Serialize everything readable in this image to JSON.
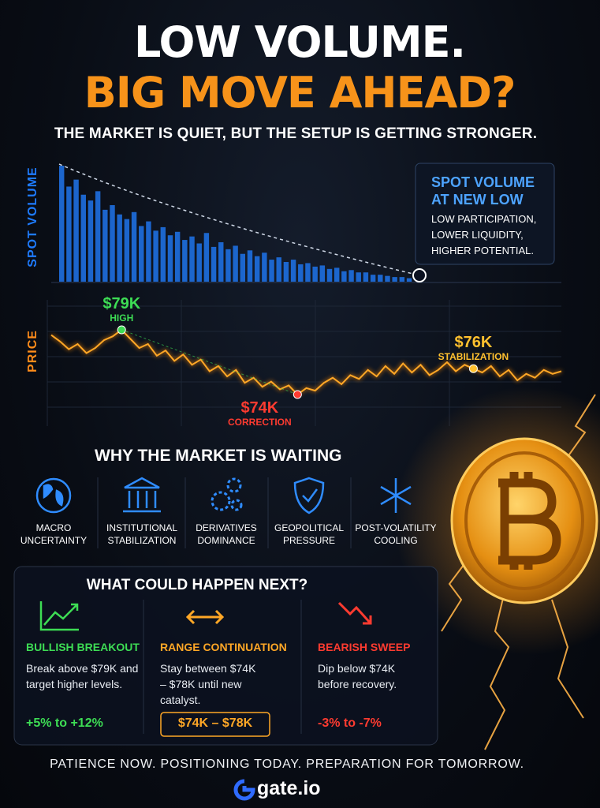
{
  "header": {
    "title_line1": "LOW VOLUME.",
    "title_line2": "BIG MOVE AHEAD?",
    "subtitle": "THE MARKET IS QUIET, BUT THE SETUP IS GETTING STRONGER."
  },
  "volume_chart": {
    "axis_label": "SPOT VOLUME",
    "color": "#1e6fe0",
    "values": [
      100,
      82,
      88,
      75,
      70,
      78,
      62,
      66,
      58,
      54,
      60,
      48,
      52,
      44,
      47,
      40,
      43,
      36,
      39,
      33,
      42,
      30,
      34,
      28,
      31,
      24,
      27,
      22,
      25,
      19,
      21,
      17,
      19,
      15,
      16,
      13,
      14,
      11,
      12,
      9,
      10,
      8,
      8,
      6,
      6,
      5,
      4,
      4,
      3
    ],
    "callout": {
      "title": "SPOT VOLUME AT NEW LOW",
      "text": "LOW PARTICIPATION, LOWER LIQUIDITY, HIGHER POTENTIAL."
    }
  },
  "price_chart": {
    "axis_label": "PRICE",
    "color": "#ffa726",
    "values": [
      78.6,
      78.1,
      77.5,
      77.9,
      77.2,
      77.6,
      78.2,
      78.5,
      79,
      78.3,
      77.6,
      77.9,
      77.0,
      77.4,
      76.6,
      77.1,
      76.3,
      76.7,
      75.8,
      76.2,
      75.4,
      75.9,
      74.9,
      75.3,
      74.6,
      75.0,
      74.4,
      74.7,
      74,
      74.5,
      74.3,
      74.9,
      75.3,
      74.8,
      75.5,
      75.2,
      75.9,
      75.4,
      76.2,
      75.6,
      76.4,
      75.7,
      76.3,
      75.5,
      75.9,
      76.5,
      75.8,
      76.3,
      76,
      75.7,
      76.2,
      75.4,
      75.9,
      75.1,
      75.6,
      75.3,
      75.9,
      75.6,
      75.8
    ],
    "annotations": [
      {
        "value": 79,
        "label": "$79K",
        "note": "HIGH",
        "color": "#3ddc54"
      },
      {
        "value": 74,
        "label": "$74K",
        "note": "CORRECTION",
        "color": "#ff3b30"
      },
      {
        "value": 76,
        "label": "$76K",
        "note": "STABILIZATION",
        "color": "#ffc02e"
      }
    ]
  },
  "reasons": {
    "title": "WHY THE MARKET IS WAITING",
    "items": [
      "MACRO UNCERTAINTY",
      "INSTITUTIONAL STABILIZATION",
      "DERIVATIVES DOMINANCE",
      "GEOPOLITICAL PRESSURE",
      "POST-VOLATILITY COOLING"
    ]
  },
  "scenarios": {
    "title": "WHAT COULD HAPPEN NEXT?",
    "items": [
      {
        "name": "BULLISH BREAKOUT",
        "text": "Break above $79K and target higher levels.",
        "range": "+5% to +12%",
        "color": "#3ddc54"
      },
      {
        "name": "RANGE CONTINUATION",
        "text": "Stay between $74K – $78K until new catalyst.",
        "range": "$74K – $78K",
        "color": "#ffa726"
      },
      {
        "name": "BEARISH SWEEP",
        "text": "Dip below $74K before recovery.",
        "range": "-3% to -7%",
        "color": "#ff3b30"
      }
    ]
  },
  "footer": {
    "tagline": "PATIENCE NOW. POSITIONING TODAY. PREPARATION FOR TOMORROW.",
    "brand": "gate.io"
  }
}
